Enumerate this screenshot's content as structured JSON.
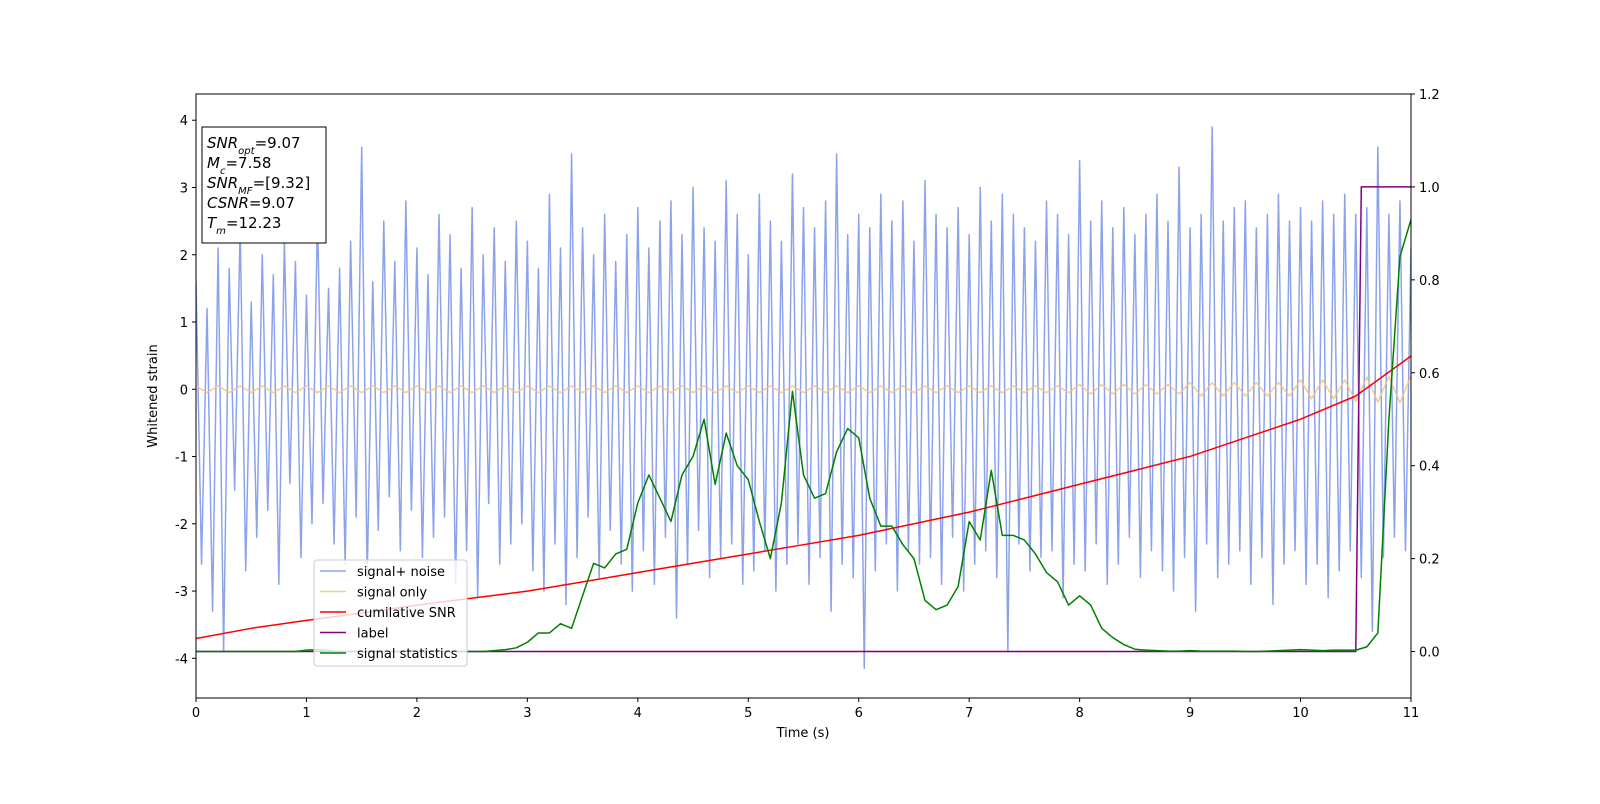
{
  "chart_data": {
    "type": "line",
    "xlabel": "Time (s)",
    "ylabel": "Whitened strain",
    "xlim": [
      0,
      11
    ],
    "ylim": [
      -4.59,
      4.39
    ],
    "y2lim": [
      -0.1,
      1.2
    ],
    "xticks": [
      0,
      1,
      2,
      3,
      4,
      5,
      6,
      7,
      8,
      9,
      10,
      11
    ],
    "yticks": [
      -4,
      -3,
      -2,
      -1,
      0,
      1,
      2,
      3,
      4
    ],
    "y2ticks": [
      {
        "value": 0,
        "label": "0.0"
      },
      0.2,
      0.4,
      0.6,
      0.8,
      {
        "value": 1,
        "label": "1.0"
      },
      1.2
    ],
    "legend": "lower left",
    "annotations": [
      {
        "base": "SNR",
        "sub": "opt",
        "text": "=9.07"
      },
      {
        "base": "M",
        "sub": "c",
        "text": "=7.58"
      },
      {
        "base": "SNR",
        "sub": "MF",
        "text": "=[9.32]"
      },
      {
        "base": "CSNR",
        "text": "=9.07"
      },
      {
        "base": "T",
        "sub": "m",
        "text": "=12.23"
      }
    ],
    "x": [
      0,
      0.1,
      0.2,
      0.3,
      0.4,
      0.5,
      0.6,
      0.7,
      0.8,
      0.9,
      1,
      1.1,
      1.2,
      1.3,
      1.4,
      1.5,
      1.6,
      1.7,
      1.8,
      1.9,
      2,
      2.1,
      2.2,
      2.3,
      2.4,
      2.5,
      2.6,
      2.7,
      2.8,
      2.9,
      3,
      3.1,
      3.2,
      3.3,
      3.4,
      3.5,
      3.6,
      3.7,
      3.8,
      3.9,
      4,
      4.1,
      4.2,
      4.3,
      4.4,
      4.5,
      4.6,
      4.7,
      4.8,
      4.9,
      5,
      5.1,
      5.2,
      5.3,
      5.4,
      5.5,
      5.6,
      5.7,
      5.8,
      5.9,
      6,
      6.1,
      6.2,
      6.3,
      6.4,
      6.5,
      6.6,
      6.7,
      6.8,
      6.9,
      7,
      7.1,
      7.2,
      7.3,
      7.4,
      7.5,
      7.6,
      7.7,
      7.8,
      7.9,
      8,
      8.1,
      8.2,
      8.3,
      8.4,
      8.5,
      8.6,
      8.7,
      8.8,
      8.9,
      9,
      9.1,
      9.2,
      9.3,
      9.4,
      9.5,
      9.6,
      9.7,
      9.8,
      9.9,
      10,
      10.1,
      10.2,
      10.3,
      10.4,
      10.5,
      10.6,
      10.7,
      10.8,
      10.9,
      11
    ],
    "series": [
      {
        "name": "signal+ noise",
        "color": "#7893e8",
        "width": 1.5,
        "x": [
          0,
          0.05,
          0.1,
          0.15,
          0.2,
          0.25,
          0.3,
          0.35,
          0.4,
          0.45,
          0.5,
          0.55,
          0.6,
          0.65,
          0.7,
          0.75,
          0.8,
          0.85,
          0.9,
          0.95,
          1,
          1.05,
          1.1,
          1.15,
          1.2,
          1.25,
          1.3,
          1.35,
          1.4,
          1.45,
          1.5,
          1.55,
          1.6,
          1.65,
          1.7,
          1.75,
          1.8,
          1.85,
          1.9,
          1.95,
          2,
          2.05,
          2.1,
          2.15,
          2.2,
          2.25,
          2.3,
          2.35,
          2.4,
          2.45,
          2.5,
          2.55,
          2.6,
          2.65,
          2.7,
          2.75,
          2.8,
          2.85,
          2.9,
          2.95,
          3,
          3.05,
          3.1,
          3.15,
          3.2,
          3.25,
          3.3,
          3.35,
          3.4,
          3.45,
          3.5,
          3.55,
          3.6,
          3.65,
          3.7,
          3.75,
          3.8,
          3.85,
          3.9,
          3.95,
          4,
          4.05,
          4.1,
          4.15,
          4.2,
          4.25,
          4.3,
          4.35,
          4.4,
          4.45,
          4.5,
          4.55,
          4.6,
          4.65,
          4.7,
          4.75,
          4.8,
          4.85,
          4.9,
          4.95,
          5,
          5.05,
          5.1,
          5.15,
          5.2,
          5.25,
          5.3,
          5.35,
          5.4,
          5.45,
          5.5,
          5.55,
          5.6,
          5.65,
          5.7,
          5.75,
          5.8,
          5.85,
          5.9,
          5.95,
          6,
          6.05,
          6.1,
          6.15,
          6.2,
          6.25,
          6.3,
          6.35,
          6.4,
          6.45,
          6.5,
          6.55,
          6.6,
          6.65,
          6.7,
          6.75,
          6.8,
          6.85,
          6.9,
          6.95,
          7,
          7.05,
          7.1,
          7.15,
          7.2,
          7.25,
          7.3,
          7.35,
          7.4,
          7.45,
          7.5,
          7.55,
          7.6,
          7.65,
          7.7,
          7.75,
          7.8,
          7.85,
          7.9,
          7.95,
          8,
          8.05,
          8.1,
          8.15,
          8.2,
          8.25,
          8.3,
          8.35,
          8.4,
          8.45,
          8.5,
          8.55,
          8.6,
          8.65,
          8.7,
          8.75,
          8.8,
          8.85,
          8.9,
          8.95,
          9,
          9.05,
          9.1,
          9.15,
          9.2,
          9.25,
          9.3,
          9.35,
          9.4,
          9.45,
          9.5,
          9.55,
          9.6,
          9.65,
          9.7,
          9.75,
          9.8,
          9.85,
          9.9,
          9.95,
          10,
          10.05,
          10.1,
          10.15,
          10.2,
          10.25,
          10.3,
          10.35,
          10.4,
          10.45,
          10.5,
          10.55,
          10.6,
          10.65,
          10.7,
          10.75,
          10.8,
          10.85,
          10.9,
          10.95,
          11
        ],
        "values": [
          1.6,
          -2.6,
          1.2,
          -3.3,
          2.1,
          -3.9,
          1.8,
          -1.5,
          2.4,
          -2.7,
          1.3,
          -2.2,
          2.0,
          -1.8,
          1.7,
          -2.9,
          2.2,
          -1.4,
          1.9,
          -2.5,
          1.4,
          -2.0,
          2.6,
          -1.7,
          1.5,
          -2.3,
          1.8,
          -2.6,
          2.2,
          -1.9,
          3.6,
          -2.8,
          1.6,
          -2.1,
          2.5,
          -1.6,
          1.9,
          -2.4,
          2.8,
          -1.8,
          2.1,
          -2.5,
          1.7,
          -2.2,
          2.6,
          -1.9,
          2.3,
          -2.9,
          1.8,
          -2.4,
          2.7,
          -3.1,
          2.0,
          -1.7,
          2.4,
          -2.6,
          1.9,
          -2.3,
          2.5,
          -2.0,
          2.2,
          -2.7,
          1.8,
          -3.0,
          2.9,
          -2.3,
          2.1,
          -3.2,
          3.5,
          -2.5,
          2.4,
          -1.9,
          2.0,
          -2.8,
          2.6,
          -2.1,
          1.9,
          -2.6,
          2.3,
          -3.0,
          2.7,
          -2.4,
          2.1,
          -2.9,
          2.5,
          -2.2,
          2.8,
          -3.4,
          2.3,
          -2.6,
          3.0,
          -2.1,
          2.4,
          -2.8,
          2.2,
          -2.5,
          3.1,
          -2.3,
          2.6,
          -2.9,
          2.0,
          -2.7,
          2.9,
          -2.4,
          2.5,
          -3.0,
          2.2,
          -2.6,
          3.2,
          -2.3,
          2.7,
          -2.9,
          2.4,
          -2.5,
          2.8,
          -3.3,
          3.5,
          -2.6,
          2.3,
          -2.8,
          2.6,
          -4.15,
          2.4,
          -2.7,
          2.9,
          -2.3,
          2.5,
          -3.0,
          2.8,
          -2.4,
          2.2,
          -2.6,
          3.1,
          -2.5,
          2.6,
          -2.9,
          2.4,
          -2.2,
          2.7,
          -3.0,
          2.3,
          -2.6,
          3.0,
          -2.4,
          2.5,
          -2.8,
          2.9,
          -3.9,
          2.6,
          -2.3,
          2.4,
          -2.7,
          2.2,
          -2.5,
          2.8,
          -2.4,
          2.6,
          -3.1,
          2.3,
          -2.6,
          3.4,
          -2.7,
          2.5,
          -2.3,
          2.8,
          -2.9,
          2.4,
          -2.6,
          2.7,
          -2.2,
          2.3,
          -2.8,
          2.6,
          -2.4,
          2.9,
          -2.7,
          2.5,
          -3.0,
          3.3,
          -2.5,
          2.4,
          -3.3,
          2.6,
          -2.3,
          3.9,
          -2.8,
          2.5,
          -2.6,
          2.7,
          -2.4,
          2.8,
          -2.9,
          2.4,
          -2.5,
          2.6,
          -3.2,
          2.9,
          -2.6,
          2.5,
          -2.4,
          2.7,
          -2.9,
          2.5,
          -2.6,
          2.8,
          -3.1,
          2.6,
          -2.7,
          2.9,
          -2.4,
          2.6,
          -2.8,
          2.7,
          -3.6,
          3.6,
          -2.5,
          2.6,
          -2.2,
          2.8,
          -2.4,
          2.1
        ]
      },
      {
        "name": "signal only",
        "color": "#f5c37a",
        "width": 1.5,
        "values": [
          0.05,
          -0.05,
          0.05,
          -0.05,
          0.05,
          -0.05,
          0.05,
          -0.05,
          0.05,
          -0.05,
          0.05,
          -0.05,
          0.05,
          -0.05,
          0.05,
          -0.05,
          0.05,
          -0.05,
          0.05,
          -0.05,
          0.05,
          -0.05,
          0.05,
          -0.05,
          0.05,
          -0.05,
          0.05,
          -0.05,
          0.05,
          -0.05,
          0.05,
          -0.05,
          0.05,
          -0.05,
          0.05,
          -0.05,
          0.05,
          -0.05,
          0.05,
          -0.05,
          0.05,
          -0.05,
          0.05,
          -0.05,
          0.05,
          -0.05,
          0.05,
          -0.05,
          0.05,
          -0.05,
          0.05,
          -0.05,
          0.05,
          -0.05,
          0.05,
          -0.05,
          0.05,
          -0.05,
          0.05,
          -0.05,
          0.05,
          -0.05,
          0.05,
          -0.05,
          0.05,
          -0.05,
          0.05,
          -0.05,
          0.05,
          -0.05,
          0.05,
          -0.05,
          0.05,
          -0.05,
          0.05,
          -0.05,
          0.05,
          -0.05,
          0.05,
          -0.05,
          0.07,
          -0.07,
          0.07,
          -0.07,
          0.07,
          -0.07,
          0.07,
          -0.07,
          0.07,
          -0.07,
          0.1,
          -0.1,
          0.1,
          -0.1,
          0.1,
          -0.1,
          0.1,
          -0.1,
          0.1,
          -0.1,
          0.14,
          -0.14,
          0.14,
          -0.14,
          0.14,
          -0.18,
          0.18,
          -0.19,
          0.19,
          -0.2,
          0.2
        ]
      },
      {
        "name": "cumilative SNR",
        "color": "#ff0000",
        "width": 1.5,
        "axis": "y2",
        "x": [
          0,
          0.5,
          1,
          1.5,
          2,
          2.5,
          3,
          3.5,
          4,
          4.5,
          5,
          5.5,
          6,
          6.5,
          7,
          7.5,
          8,
          8.5,
          9,
          9.5,
          10,
          10.5,
          11
        ],
        "values": [
          0.028,
          0.05,
          0.067,
          0.083,
          0.1,
          0.115,
          0.13,
          0.15,
          0.17,
          0.19,
          0.21,
          0.23,
          0.25,
          0.275,
          0.3,
          0.33,
          0.36,
          0.39,
          0.42,
          0.46,
          0.5,
          0.55,
          0.636
        ]
      },
      {
        "name": "label",
        "color": "#800080",
        "width": 1.5,
        "axis": "y2",
        "x": [
          0,
          10.5,
          10.55,
          11
        ],
        "values": [
          0,
          0,
          1,
          1
        ]
      },
      {
        "name": "signal statistics",
        "color": "#008000",
        "width": 1.5,
        "axis": "y2",
        "values": [
          0,
          0,
          0,
          0,
          0,
          0,
          0,
          0,
          0,
          0,
          0.003,
          0.004,
          0.002,
          0,
          0,
          0,
          0,
          0,
          0,
          0,
          0,
          0,
          0,
          0,
          0,
          0,
          0,
          0.002,
          0.004,
          0.008,
          0.02,
          0.04,
          0.04,
          0.06,
          0.05,
          0.12,
          0.19,
          0.18,
          0.21,
          0.22,
          0.32,
          0.38,
          0.33,
          0.28,
          0.38,
          0.42,
          0.5,
          0.36,
          0.47,
          0.4,
          0.37,
          0.28,
          0.2,
          0.32,
          0.56,
          0.38,
          0.33,
          0.34,
          0.43,
          0.48,
          0.46,
          0.33,
          0.27,
          0.27,
          0.23,
          0.2,
          0.11,
          0.09,
          0.1,
          0.14,
          0.28,
          0.24,
          0.39,
          0.25,
          0.25,
          0.24,
          0.21,
          0.17,
          0.15,
          0.1,
          0.12,
          0.1,
          0.05,
          0.03,
          0.015,
          0.005,
          0.003,
          0.002,
          0.001,
          0.001,
          0.002,
          0.001,
          0.001,
          0.001,
          0.001,
          0,
          0,
          0.001,
          0.002,
          0.003,
          0.004,
          0.003,
          0.002,
          0.003,
          0.003,
          0.003,
          0.01,
          0.04,
          0.5,
          0.85,
          0.93
        ]
      }
    ]
  }
}
